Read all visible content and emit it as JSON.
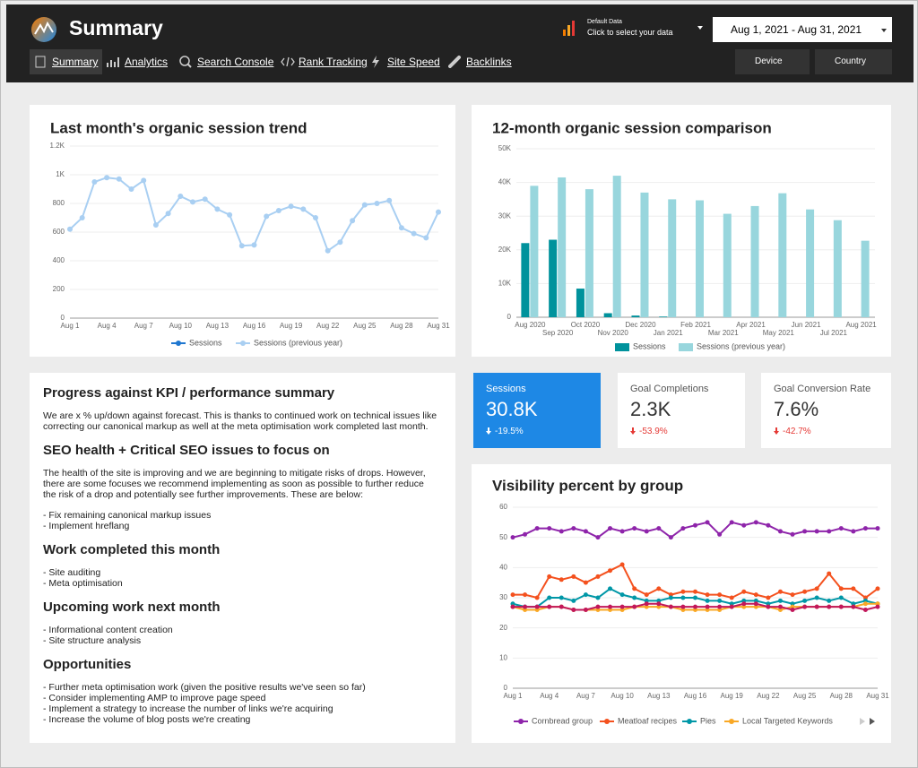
{
  "header": {
    "title": "Summary",
    "data_source": {
      "name": "Default Data",
      "hint": "Click to select your data"
    },
    "date_range": "Aug 1, 2021 - Aug 31, 2021",
    "nav": [
      "Summary",
      "Analytics",
      "Search Console",
      "Rank Tracking",
      "Site Speed",
      "Backlinks"
    ],
    "filters": [
      "Device",
      "Country"
    ]
  },
  "chart_data": [
    {
      "type": "line",
      "title": "Last month's organic session trend",
      "categories": [
        "Aug 1",
        null,
        null,
        "Aug 4",
        null,
        null,
        "Aug 7",
        null,
        null,
        "Aug 10",
        null,
        null,
        "Aug 13",
        null,
        null,
        "Aug 16",
        null,
        null,
        "Aug 19",
        null,
        null,
        "Aug 22",
        null,
        null,
        "Aug 25",
        null,
        null,
        "Aug 28",
        null,
        null,
        "Aug 31"
      ],
      "ylim": [
        0,
        1200
      ],
      "yticks": [
        0,
        200,
        400,
        600,
        800,
        {
          "value": 1000,
          "label": "1K"
        },
        {
          "value": 1200,
          "label": "1.2K"
        }
      ],
      "grid": true,
      "series": [
        {
          "name": "Sessions",
          "color": "#1f77d0",
          "values": [
            null,
            null,
            null,
            null,
            null,
            null,
            null,
            null,
            null,
            null,
            null,
            null,
            null,
            null,
            null,
            null,
            null,
            null,
            null,
            null,
            null,
            null,
            null,
            null,
            null,
            null,
            null,
            null,
            null,
            null,
            null
          ]
        },
        {
          "name": "Sessions (previous year)",
          "color": "#a9cff2",
          "values": [
            620,
            700,
            950,
            980,
            970,
            900,
            960,
            650,
            730,
            850,
            810,
            830,
            760,
            720,
            505,
            510,
            710,
            750,
            780,
            760,
            700,
            470,
            530,
            680,
            790,
            800,
            820,
            630,
            590,
            560,
            740
          ]
        }
      ]
    },
    {
      "type": "bar",
      "title": "12-month organic session comparison",
      "categories": [
        "Aug 2020",
        "Sep 2020",
        "Oct 2020",
        "Nov 2020",
        "Dec 2020",
        "Jan 2021",
        "Feb 2021",
        "Mar 2021",
        "Apr 2021",
        "May 2021",
        "Jun 2021",
        "Jul 2021",
        "Aug 2021"
      ],
      "ylim": [
        0,
        50000
      ],
      "yticks": [
        0,
        {
          "value": 10000,
          "label": "10K"
        },
        {
          "value": 20000,
          "label": "20K"
        },
        {
          "value": 30000,
          "label": "30K"
        },
        {
          "value": 40000,
          "label": "40K"
        },
        {
          "value": 50000,
          "label": "50K"
        }
      ],
      "grid": true,
      "series": [
        {
          "name": "Sessions",
          "color": "#00929c",
          "values": [
            22000,
            23000,
            8500,
            1200,
            500,
            200,
            null,
            null,
            null,
            null,
            null,
            null,
            null
          ]
        },
        {
          "name": "Sessions (previous year)",
          "color": "#98d6dd",
          "values": [
            39000,
            41500,
            38000,
            42000,
            37000,
            35000,
            34700,
            30700,
            33000,
            36800,
            32000,
            28800,
            22700
          ]
        }
      ]
    },
    {
      "type": "line",
      "title": "Visibility percent by group",
      "categories": [
        "Aug 1",
        null,
        null,
        "Aug 4",
        null,
        null,
        "Aug 7",
        null,
        null,
        "Aug 10",
        null,
        null,
        "Aug 13",
        null,
        null,
        "Aug 16",
        null,
        null,
        "Aug 19",
        null,
        null,
        "Aug 22",
        null,
        null,
        "Aug 25",
        null,
        null,
        "Aug 28",
        null,
        null,
        "Aug 31"
      ],
      "ylim": [
        0,
        60
      ],
      "yticks": [
        0,
        10,
        20,
        30,
        40,
        50,
        60
      ],
      "grid": true,
      "series": [
        {
          "name": "Cornbread group",
          "color": "#8e24aa",
          "values": [
            50,
            51,
            53,
            53,
            52,
            53,
            52,
            50,
            53,
            52,
            53,
            52,
            53,
            50,
            53,
            54,
            55,
            51,
            55,
            54,
            55,
            54,
            52,
            51,
            52,
            52,
            52,
            53,
            52,
            53,
            53
          ]
        },
        {
          "name": "Meatloaf recipes",
          "color": "#f4511e",
          "values": [
            31,
            31,
            30,
            37,
            36,
            37,
            35,
            37,
            39,
            41,
            33,
            31,
            33,
            31,
            32,
            32,
            31,
            31,
            30,
            32,
            31,
            30,
            32,
            31,
            32,
            33,
            38,
            33,
            33,
            30,
            33
          ]
        },
        {
          "name": "Pies",
          "color": "#0097a7",
          "values": [
            28,
            27,
            27,
            30,
            30,
            29,
            31,
            30,
            33,
            31,
            30,
            29,
            29,
            30,
            30,
            30,
            29,
            29,
            28,
            29,
            29,
            28,
            29,
            28,
            29,
            30,
            29,
            30,
            28,
            29,
            28
          ]
        },
        {
          "name": "Local Targeted Keywords",
          "color": "#f9a825",
          "values": [
            27,
            26,
            26,
            27,
            27,
            26,
            26,
            26,
            26,
            26,
            27,
            27,
            27,
            27,
            26,
            26,
            26,
            26,
            27,
            27,
            27,
            27,
            26,
            27,
            27,
            27,
            27,
            27,
            27,
            28,
            28
          ]
        },
        {
          "color": "#c2185b",
          "values": [
            27,
            27,
            27,
            27,
            27,
            26,
            26,
            27,
            27,
            27,
            27,
            28,
            28,
            27,
            27,
            27,
            27,
            27,
            27,
            28,
            28,
            27,
            27,
            26,
            27,
            27,
            27,
            27,
            27,
            26,
            27
          ]
        }
      ]
    }
  ],
  "scorecards": [
    {
      "label": "Sessions",
      "value": "30.8K",
      "change": "-19.5%"
    },
    {
      "label": "Goal Completions",
      "value": "2.3K",
      "change": "-53.9%"
    },
    {
      "label": "Goal Conversion Rate",
      "value": "7.6%",
      "change": "-42.7%"
    }
  ],
  "report": {
    "sections": [
      {
        "heading": "Progress against KPI / performance summary",
        "paragraphs": [
          "We are x % up/down against forecast. This is thanks to continued work on technical issues like correcting our canonical markup as well at the meta optimisation work completed last month."
        ],
        "items": []
      },
      {
        "heading": "SEO health + Critical SEO issues to focus on",
        "paragraphs": [
          "The health of the site is improving and we are beginning to mitigate risks of drops. However, there are some focuses we recommend implementing as soon as possible to further reduce the risk of a drop and potentially see further improvements. These are below:"
        ],
        "items": [
          "- Fix remaining canonical markup issues",
          "- Implement hreflang"
        ]
      },
      {
        "heading": "Work completed this month",
        "paragraphs": [],
        "items": [
          "- Site auditing",
          "- Meta optimisation"
        ]
      },
      {
        "heading": "Upcoming work next month",
        "paragraphs": [],
        "items": [
          "- Informational content creation",
          "- Site structure analysis"
        ]
      },
      {
        "heading": "Opportunities",
        "paragraphs": [],
        "items": [
          "- Further meta optimisation work (given the positive results we've seen so far)",
          "- Consider implementing AMP to improve page speed",
          "- Implement a strategy to increase the number of links we're acquiring",
          "- Increase the volume of blog posts we're creating"
        ]
      }
    ]
  }
}
